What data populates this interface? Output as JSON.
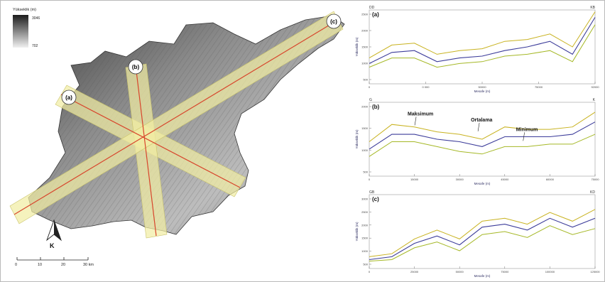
{
  "legend": {
    "title": "Yükseklik (m)",
    "max": "3046",
    "min": "702"
  },
  "profile_labels": {
    "a": "(a)",
    "b": "(b)",
    "c": "(c)"
  },
  "north_label": "K",
  "scalebar": {
    "ticks": [
      "0",
      "10",
      "20",
      "30 km"
    ]
  },
  "charts": [
    {
      "id": "a",
      "tag": "(a)",
      "corner_left": "DD",
      "corner_right": "KB",
      "ylabel": "Yükseklik (m)",
      "xlabel": "Mesafe (m)",
      "yticks": [
        "2500",
        "2000",
        "1500",
        "1000",
        "500"
      ],
      "xticks": [
        "0",
        "0 000",
        "50000",
        "75000",
        "92000"
      ],
      "annotations": []
    },
    {
      "id": "b",
      "tag": "(b)",
      "corner_left": "G",
      "corner_right": "K",
      "ylabel": "Yükseklik (m)",
      "xlabel": "Mesafe (m)",
      "yticks": [
        "2000",
        "1500",
        "1000",
        "500"
      ],
      "xticks": [
        "0",
        "15000",
        "30000",
        "45000",
        "60000",
        "75000"
      ],
      "annotations": [
        "Maksimum",
        "Ortalama",
        "Minimum"
      ]
    },
    {
      "id": "c",
      "tag": "(c)",
      "corner_left": "GB",
      "corner_right": "KD",
      "ylabel": "Yükseklik (m)",
      "xlabel": "Mesafe (m)",
      "yticks": [
        "3000",
        "2500",
        "2000",
        "1500",
        "1000",
        "500"
      ],
      "xticks": [
        "0",
        "25000",
        "50000",
        "75000",
        "100000",
        "125000"
      ],
      "annotations": []
    }
  ],
  "chart_data": [
    {
      "type": "line",
      "x_range": [
        0,
        92000
      ],
      "ylim": [
        500,
        2500
      ],
      "x": [
        0,
        9200,
        18400,
        27600,
        36800,
        46000,
        55200,
        64400,
        73600,
        82800,
        92000
      ],
      "series": [
        {
          "name": "Maksimum",
          "values": [
            1200,
            1550,
            1600,
            1300,
            1400,
            1450,
            1650,
            1700,
            1850,
            1500,
            2450
          ],
          "color": "#c8b21f"
        },
        {
          "name": "Ortalama",
          "values": [
            1050,
            1350,
            1400,
            1100,
            1200,
            1250,
            1400,
            1500,
            1650,
            1300,
            2300
          ],
          "color": "#3c3c9a"
        },
        {
          "name": "Minimum",
          "values": [
            950,
            1200,
            1200,
            950,
            1050,
            1100,
            1250,
            1300,
            1400,
            1100,
            2100
          ],
          "color": "#a5b826"
        }
      ]
    },
    {
      "type": "line",
      "x_range": [
        0,
        75000
      ],
      "ylim": [
        500,
        2000
      ],
      "x": [
        0,
        7500,
        15000,
        22500,
        30000,
        37500,
        45000,
        52500,
        60000,
        67500,
        75000
      ],
      "series": [
        {
          "name": "Maksimum",
          "values": [
            1200,
            1550,
            1500,
            1400,
            1350,
            1250,
            1500,
            1450,
            1450,
            1500,
            1800
          ],
          "color": "#c8b21f"
        },
        {
          "name": "Ortalama",
          "values": [
            1050,
            1350,
            1350,
            1250,
            1200,
            1100,
            1300,
            1300,
            1300,
            1350,
            1600
          ],
          "color": "#3c3c9a"
        },
        {
          "name": "Minimum",
          "values": [
            900,
            1200,
            1200,
            1100,
            1000,
            950,
            1100,
            1100,
            1150,
            1150,
            1350
          ],
          "color": "#a5b826"
        }
      ]
    },
    {
      "type": "line",
      "x_range": [
        0,
        125000
      ],
      "ylim": [
        500,
        3000
      ],
      "x": [
        0,
        12500,
        25000,
        37500,
        50000,
        62500,
        75000,
        87500,
        100000,
        112500,
        125000
      ],
      "series": [
        {
          "name": "Maksimum",
          "values": [
            900,
            1000,
            1500,
            1800,
            1500,
            2100,
            2200,
            2000,
            2400,
            2100,
            2500
          ],
          "color": "#c8b21f"
        },
        {
          "name": "Ortalama",
          "values": [
            800,
            900,
            1350,
            1600,
            1300,
            1900,
            2000,
            1800,
            2200,
            1900,
            2200
          ],
          "color": "#3c3c9a"
        },
        {
          "name": "Minimum",
          "values": [
            750,
            800,
            1200,
            1400,
            1100,
            1650,
            1750,
            1550,
            1950,
            1650,
            1850
          ],
          "color": "#a5b826"
        }
      ]
    }
  ]
}
